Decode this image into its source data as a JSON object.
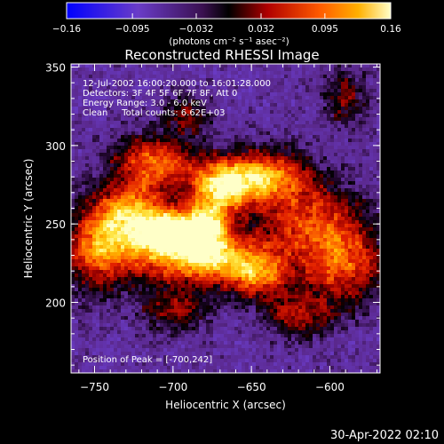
{
  "chart_data": {
    "type": "heatmap",
    "title": "Reconstructed RHESSI Image",
    "xlabel": "Heliocentric X (arcsec)",
    "ylabel": "Heliocentric Y (arcsec)",
    "xlim": [
      -765,
      -568
    ],
    "ylim": [
      155,
      352
    ],
    "x_ticks": [
      -750,
      -700,
      -650,
      -600
    ],
    "y_ticks": [
      200,
      250,
      300,
      350
    ],
    "colorbar": {
      "ticks": [
        "-0.16",
        "-0.095",
        "-0.032",
        "0.032",
        "0.095",
        "0.16"
      ],
      "range": [
        -0.16,
        0.16
      ],
      "unit_label": "(photons cm⁻² s⁻¹ asec⁻²)"
    },
    "info_lines": [
      "12-Jul-2002 16:00:20.000 to 16:01:28.000",
      "Detectors: 3F 4F 5F 6F 7F 8F, Att 0",
      "Energy Range: 3.0 - 6.0 keV",
      "Clean     Total counts: 6.62E+03"
    ],
    "peak_label": "Position of Peak = [-700,242]",
    "peak": {
      "x": -700,
      "y": 242,
      "value": 0.16
    },
    "emission_blobs": [
      {
        "x": -700,
        "y": 245,
        "sx": 12,
        "sy": 8,
        "amp": 0.16
      },
      {
        "x": -725,
        "y": 256,
        "sx": 16,
        "sy": 14,
        "amp": 0.12
      },
      {
        "x": -678,
        "y": 250,
        "sx": 10,
        "sy": 12,
        "amp": 0.12
      },
      {
        "x": -668,
        "y": 275,
        "sx": 14,
        "sy": 11,
        "amp": 0.14
      },
      {
        "x": -640,
        "y": 280,
        "sx": 18,
        "sy": 12,
        "amp": 0.11
      },
      {
        "x": -712,
        "y": 290,
        "sx": 18,
        "sy": 12,
        "amp": 0.1
      },
      {
        "x": -700,
        "y": 232,
        "sx": 35,
        "sy": 14,
        "amp": 0.08
      },
      {
        "x": -670,
        "y": 226,
        "sx": 24,
        "sy": 10,
        "amp": 0.07
      },
      {
        "x": -610,
        "y": 250,
        "sx": 24,
        "sy": 18,
        "amp": 0.08
      },
      {
        "x": -590,
        "y": 222,
        "sx": 18,
        "sy": 16,
        "amp": 0.07
      },
      {
        "x": -748,
        "y": 236,
        "sx": 14,
        "sy": 20,
        "amp": 0.07
      },
      {
        "x": -645,
        "y": 215,
        "sx": 14,
        "sy": 10,
        "amp": 0.06
      },
      {
        "x": -620,
        "y": 192,
        "sx": 16,
        "sy": 10,
        "amp": 0.05
      },
      {
        "x": -700,
        "y": 195,
        "sx": 14,
        "sy": 10,
        "amp": 0.04
      },
      {
        "x": -690,
        "y": 320,
        "sx": 10,
        "sy": 8,
        "amp": 0.04
      },
      {
        "x": -590,
        "y": 330,
        "sx": 10,
        "sy": 14,
        "amp": 0.03
      }
    ]
  },
  "timestamp": "30-Apr-2022 02:10"
}
